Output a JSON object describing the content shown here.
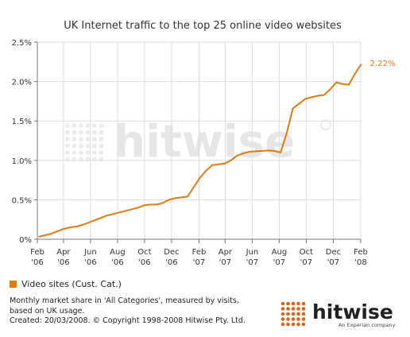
{
  "chart_data": {
    "type": "line",
    "title": "UK Internet traffic to the top 25 online video websites",
    "xlabel": "",
    "ylabel": "",
    "ylim": [
      0,
      2.5
    ],
    "yticks": [
      "0%",
      "0.5%",
      "1.0%",
      "1.5%",
      "2.0%",
      "2.5%"
    ],
    "xticks": [
      {
        "month": "Feb",
        "year": "'06"
      },
      {
        "month": "Apr",
        "year": "'06"
      },
      {
        "month": "Jun",
        "year": "'06"
      },
      {
        "month": "Aug",
        "year": "'06"
      },
      {
        "month": "Oct",
        "year": "'06"
      },
      {
        "month": "Dec",
        "year": "'06"
      },
      {
        "month": "Feb",
        "year": "'07"
      },
      {
        "month": "Apr",
        "year": "'07"
      },
      {
        "month": "Jun",
        "year": "'07"
      },
      {
        "month": "Aug",
        "year": "'07"
      },
      {
        "month": "Oct",
        "year": "'07"
      },
      {
        "month": "Dec",
        "year": "'07"
      },
      {
        "month": "Feb",
        "year": "'08"
      }
    ],
    "grid": true,
    "series": [
      {
        "name": "Video sites (Cust. Cat.)",
        "color": "#e07b12",
        "x": [
          "2006-02-04",
          "2006-02-18",
          "2006-03-04",
          "2006-03-18",
          "2006-04-01",
          "2006-04-15",
          "2006-04-29",
          "2006-05-13",
          "2006-05-27",
          "2006-06-10",
          "2006-06-24",
          "2006-07-08",
          "2006-07-22",
          "2006-08-05",
          "2006-08-19",
          "2006-09-02",
          "2006-09-16",
          "2006-09-30",
          "2006-10-14",
          "2006-10-28",
          "2006-11-11",
          "2006-11-25",
          "2006-12-09",
          "2006-12-23",
          "2007-01-06",
          "2007-01-20",
          "2007-02-03",
          "2007-02-17",
          "2007-03-03",
          "2007-03-17",
          "2007-03-31",
          "2007-04-14",
          "2007-04-28",
          "2007-05-12",
          "2007-05-26",
          "2007-06-09",
          "2007-06-23",
          "2007-07-07",
          "2007-07-21",
          "2007-08-04",
          "2007-08-18",
          "2007-09-01",
          "2007-09-15",
          "2007-09-29",
          "2007-10-13",
          "2007-10-27",
          "2007-11-10",
          "2007-11-24",
          "2007-12-08",
          "2007-12-22",
          "2008-01-05",
          "2008-01-19",
          "2008-02-02"
        ],
        "values": [
          0.03,
          0.05,
          0.07,
          0.1,
          0.13,
          0.15,
          0.16,
          0.18,
          0.21,
          0.24,
          0.27,
          0.3,
          0.32,
          0.34,
          0.36,
          0.38,
          0.4,
          0.43,
          0.44,
          0.44,
          0.46,
          0.5,
          0.52,
          0.53,
          0.54,
          0.66,
          0.78,
          0.87,
          0.94,
          0.95,
          0.96,
          1.0,
          1.06,
          1.09,
          1.11,
          1.115,
          1.12,
          1.125,
          1.12,
          1.1,
          1.35,
          1.66,
          1.72,
          1.78,
          1.8,
          1.82,
          1.83,
          1.9,
          1.99,
          1.97,
          1.96,
          2.1,
          2.22
        ],
        "end_label": "2.22%"
      }
    ]
  },
  "footnote": {
    "line1": "Monthly market share in 'All Categories', measured by visits,",
    "line2": "based on UK usage.",
    "line3": "Created: 20/03/2008. © Copyright 1998-2008 Hitwise Pty. Ltd."
  },
  "logo": {
    "wordmark": "hitwise",
    "tagline": "An Experian company",
    "watermark": "hitwise",
    "colors": {
      "dots": "#d9661f",
      "text": "#222222",
      "watermark": "#e4e4e4"
    }
  },
  "colors": {
    "axis": "#777777",
    "grid": "#dddddd",
    "line": "#e07b12"
  }
}
